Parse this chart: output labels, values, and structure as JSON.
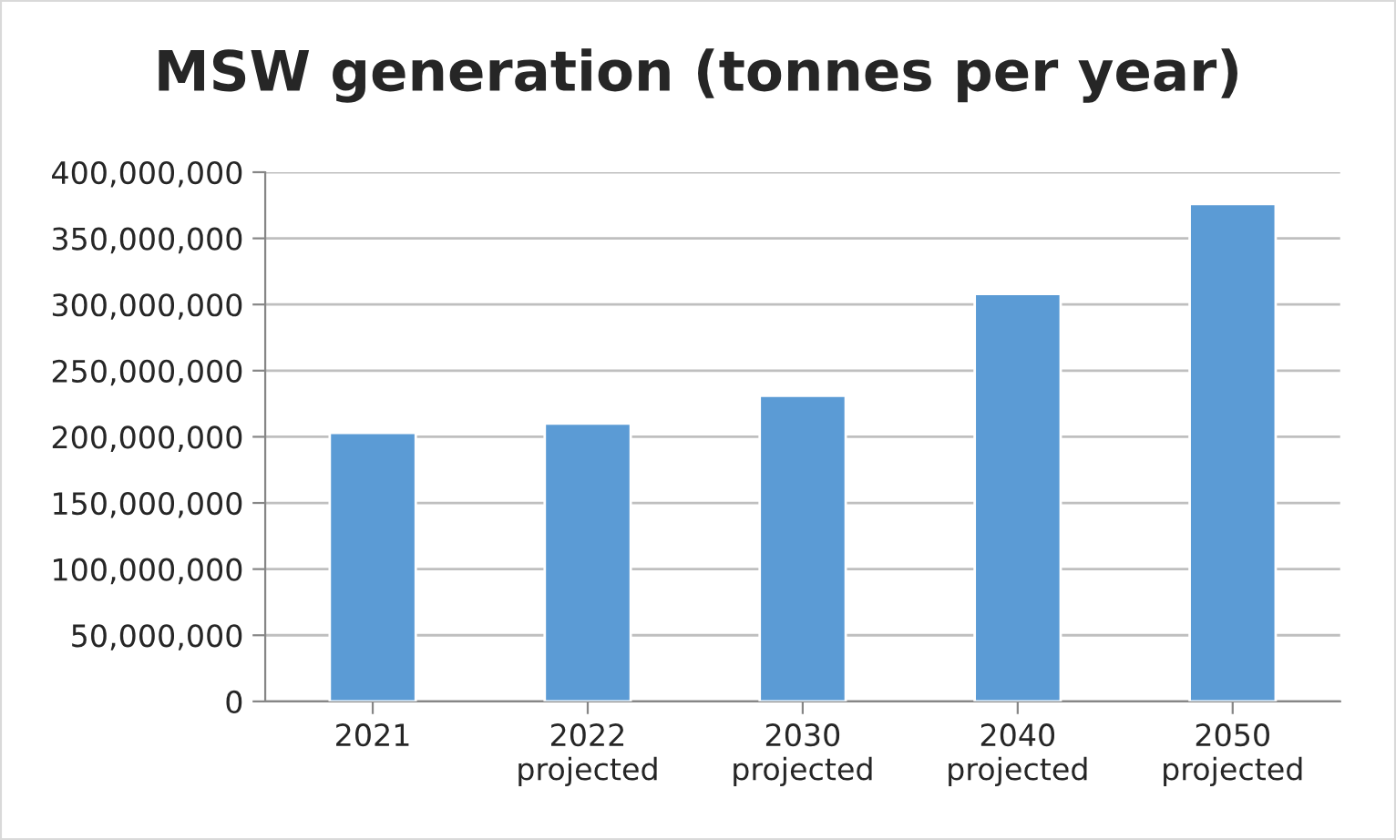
{
  "chart_data": {
    "type": "bar",
    "title": "MSW generation (tonnes per year)",
    "categories": [
      "2021",
      "2022\nprojected",
      "2030\nprojected",
      "2040\nprojected",
      "2050\nprojected"
    ],
    "values": [
      203000000,
      210000000,
      231000000,
      308000000,
      376000000
    ],
    "color": "#5b9bd5",
    "ylim": [
      0,
      400000000
    ],
    "yticks": [
      {
        "value": 0,
        "label": "0"
      },
      {
        "value": 50000000,
        "label": "50,000,000"
      },
      {
        "value": 100000000,
        "label": "100,000,000"
      },
      {
        "value": 150000000,
        "label": "150,000,000"
      },
      {
        "value": 200000000,
        "label": "200,000,000"
      },
      {
        "value": 250000000,
        "label": "250,000,000"
      },
      {
        "value": 300000000,
        "label": "300,000,000"
      },
      {
        "value": 350000000,
        "label": "350,000,000"
      },
      {
        "value": 400000000,
        "label": "400,000,000"
      }
    ],
    "grid": "y"
  }
}
